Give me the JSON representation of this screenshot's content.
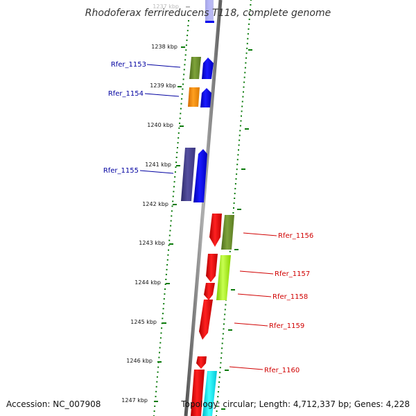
{
  "title": "Rhodoferax ferrireducens T118, complete genome",
  "accession_text": "Accession: NC_007908",
  "summary_text": "Topology: circular; Length: 4,712,337 bp; Genes: 4,228",
  "colors": {
    "backbone": "#8a8a8a",
    "dots": "#0a7a0a",
    "left_label": "#0000a0",
    "right_label": "#d00000",
    "tick_faded": "#bbbbbb"
  },
  "ticks": [
    {
      "label": "1237 kbp",
      "faded": true
    },
    {
      "label": "1238 kbp"
    },
    {
      "label": "1239 kbp"
    },
    {
      "label": "1240 kbp"
    },
    {
      "label": "1241 kbp"
    },
    {
      "label": "1242 kbp"
    },
    {
      "label": "1243 kbp"
    },
    {
      "label": "1244 kbp"
    },
    {
      "label": "1245 kbp"
    },
    {
      "label": "1246 kbp"
    },
    {
      "label": "1247 kbp"
    }
  ],
  "gene_labels": [
    {
      "text": "Rfer_1153",
      "side": "left"
    },
    {
      "text": "Rfer_1154",
      "side": "left"
    },
    {
      "text": "Rfer_1155",
      "side": "left"
    },
    {
      "text": "Rfer_1156",
      "side": "right"
    },
    {
      "text": "Rfer_1157",
      "side": "right"
    },
    {
      "text": "Rfer_1158",
      "side": "right"
    },
    {
      "text": "Rfer_1159",
      "side": "right"
    },
    {
      "text": "Rfer_1160",
      "side": "right"
    }
  ],
  "feature_colors": [
    "olive-green",
    "blue",
    "orange",
    "slate-blue",
    "red",
    "yellow-green",
    "cyan"
  ]
}
